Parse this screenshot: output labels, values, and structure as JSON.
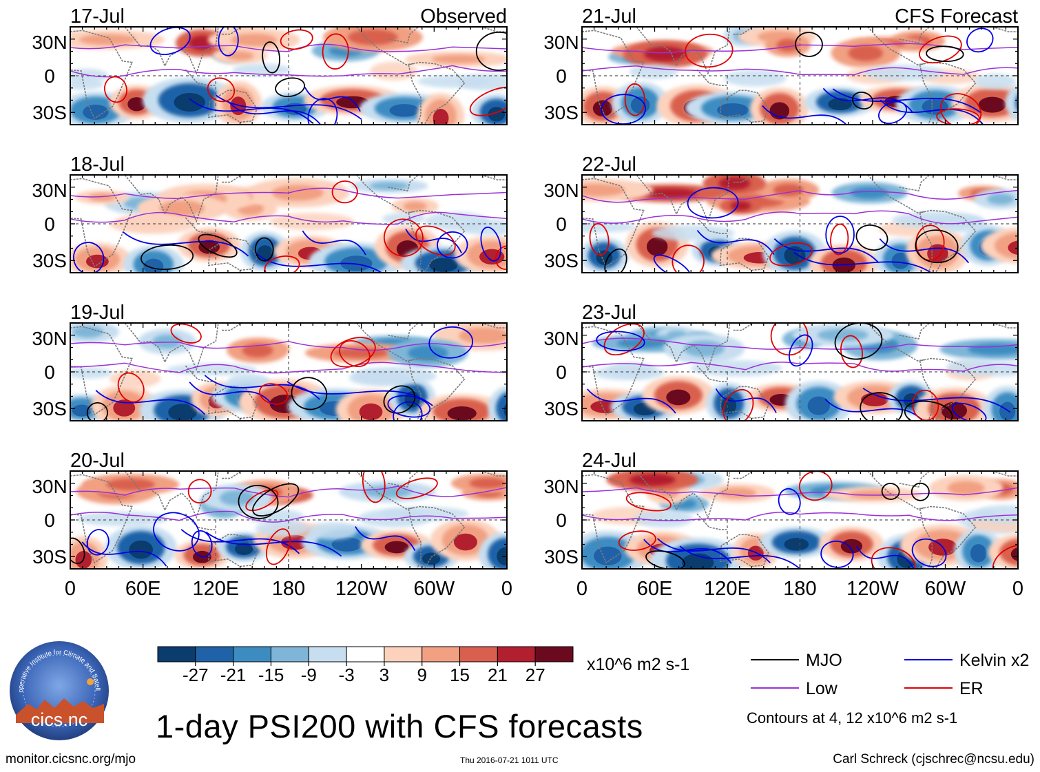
{
  "title": "1-day PSI200 with CFS forecasts",
  "headers": {
    "observed": "Observed",
    "forecast": "CFS Forecast"
  },
  "panels_observed": [
    {
      "date": "17-Jul"
    },
    {
      "date": "18-Jul"
    },
    {
      "date": "19-Jul"
    },
    {
      "date": "20-Jul"
    }
  ],
  "panels_forecast": [
    {
      "date": "21-Jul"
    },
    {
      "date": "22-Jul"
    },
    {
      "date": "23-Jul"
    },
    {
      "date": "24-Jul"
    }
  ],
  "lat_labels": [
    "30N",
    "0",
    "30S"
  ],
  "lon_labels": [
    "0",
    "60E",
    "120E",
    "180",
    "120W",
    "60W",
    "0"
  ],
  "colorbar": {
    "ticks": [
      "-27",
      "-21",
      "-15",
      "-9",
      "-3",
      "3",
      "9",
      "15",
      "21",
      "27"
    ],
    "colors": [
      "#0b3c6e",
      "#1f62a8",
      "#3c8cc2",
      "#7fb6d8",
      "#c7def0",
      "#ffffff",
      "#fcd2bd",
      "#f1a082",
      "#d9604e",
      "#b21f2e",
      "#6b0a1f"
    ],
    "units": "x10^6 m2 s-1"
  },
  "legend": [
    {
      "label": "MJO",
      "color": "#000000"
    },
    {
      "label": "Kelvin x2",
      "color": "#0000e6"
    },
    {
      "label": "Low",
      "color": "#9b30d9"
    },
    {
      "label": "ER",
      "color": "#e00000"
    }
  ],
  "contour_note": "Contours at 4, 12 x10^6 m2 s-1",
  "logo_text": "cics.nc",
  "logo_ring_text": "Cooperative Institute for Climate and Satellites",
  "footer": {
    "left": "monitor.cicsnc.org/mjo",
    "middle": "Thu 2016-07-21 1011 UTC",
    "right": "Carl Schreck (cjschrec@ncsu.edu)"
  }
}
